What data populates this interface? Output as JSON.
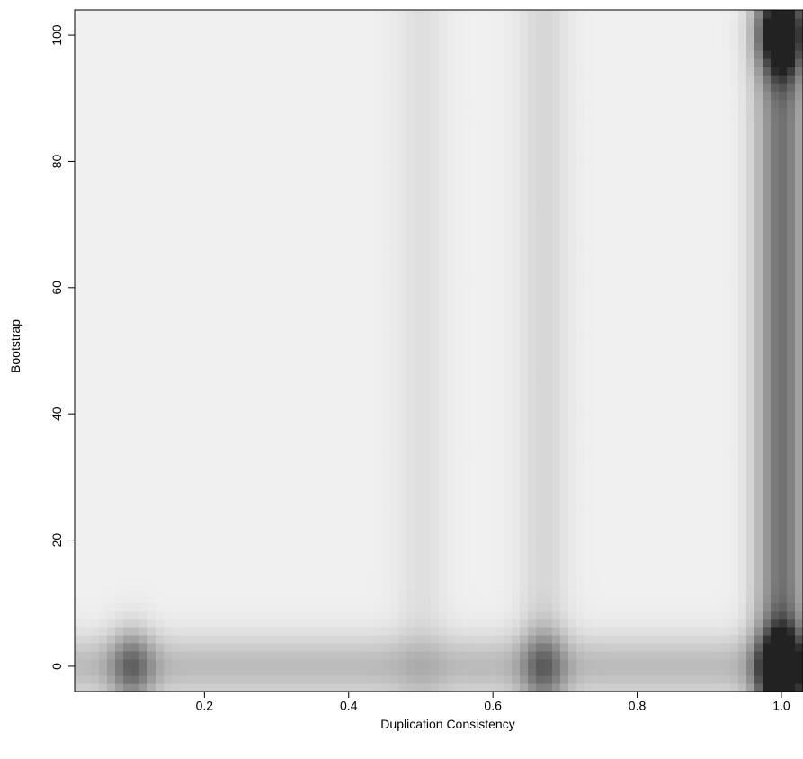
{
  "chart_data": {
    "type": "heatmap",
    "title": "",
    "xlabel": "Duplication Consistency",
    "ylabel": "Bootstrap",
    "xlim": [
      0.02,
      1.03
    ],
    "ylim": [
      -4,
      104
    ],
    "x_ticks": [
      0.2,
      0.4,
      0.6,
      0.8,
      1.0
    ],
    "x_tick_labels": [
      "0.2",
      "0.4",
      "0.6",
      "0.8",
      "1.0"
    ],
    "y_ticks": [
      0,
      20,
      40,
      60,
      80,
      100
    ],
    "y_tick_labels": [
      "0",
      "20",
      "40",
      "60",
      "80",
      "100"
    ],
    "grid": false,
    "legend": "none",
    "colors": {
      "low": "#f4f4f4",
      "high": "#222222",
      "background": "#ffffff",
      "axis": "#000000"
    },
    "density_hotspots": [
      {
        "x": 1.0,
        "y": 100,
        "density": 1.0
      },
      {
        "x": 1.0,
        "y": 0,
        "density": 0.95
      },
      {
        "x": 1.0,
        "y": 50,
        "density": 0.6
      },
      {
        "x": 0.1,
        "y": 0,
        "density": 0.45
      },
      {
        "x": 0.5,
        "y": 0,
        "density": 0.25
      },
      {
        "x": 0.67,
        "y": 0,
        "density": 0.35
      },
      {
        "x": 0.67,
        "y": 50,
        "density": 0.12
      },
      {
        "x": 0.5,
        "y": 50,
        "density": 0.08
      }
    ]
  }
}
